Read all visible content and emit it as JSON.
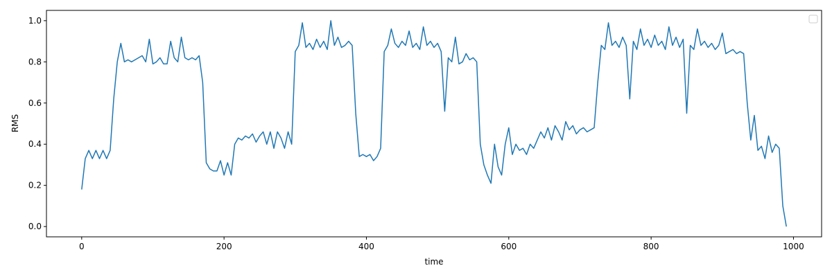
{
  "chart_data": {
    "type": "line",
    "xlabel": "time",
    "ylabel": "RMS",
    "x": [
      0,
      5,
      10,
      15,
      20,
      25,
      30,
      35,
      40,
      45,
      50,
      55,
      60,
      65,
      70,
      75,
      80,
      85,
      90,
      95,
      100,
      105,
      110,
      115,
      120,
      125,
      130,
      135,
      140,
      145,
      150,
      155,
      160,
      165,
      170,
      175,
      180,
      185,
      190,
      195,
      200,
      205,
      210,
      215,
      220,
      225,
      230,
      235,
      240,
      245,
      250,
      255,
      260,
      265,
      270,
      275,
      280,
      285,
      290,
      295,
      300,
      305,
      310,
      315,
      320,
      325,
      330,
      335,
      340,
      345,
      350,
      355,
      360,
      365,
      370,
      375,
      380,
      385,
      390,
      395,
      400,
      405,
      410,
      415,
      420,
      425,
      430,
      435,
      440,
      445,
      450,
      455,
      460,
      465,
      470,
      475,
      480,
      485,
      490,
      495,
      500,
      505,
      510,
      515,
      520,
      525,
      530,
      535,
      540,
      545,
      550,
      555,
      560,
      565,
      570,
      575,
      580,
      585,
      590,
      595,
      600,
      605,
      610,
      615,
      620,
      625,
      630,
      635,
      640,
      645,
      650,
      655,
      660,
      665,
      670,
      675,
      680,
      685,
      690,
      695,
      700,
      705,
      710,
      715,
      720,
      725,
      730,
      735,
      740,
      745,
      750,
      755,
      760,
      765,
      770,
      775,
      780,
      785,
      790,
      795,
      800,
      805,
      810,
      815,
      820,
      825,
      830,
      835,
      840,
      845,
      850,
      855,
      860,
      865,
      870,
      875,
      880,
      885,
      890,
      895,
      900,
      905,
      910,
      915,
      920,
      925,
      930,
      935,
      940,
      945,
      950,
      955,
      960,
      965,
      970,
      975,
      980,
      985,
      990
    ],
    "series": [
      {
        "color": "#1f77b4",
        "values": [
          0.18,
          0.33,
          0.37,
          0.33,
          0.37,
          0.33,
          0.37,
          0.33,
          0.37,
          0.62,
          0.8,
          0.89,
          0.8,
          0.81,
          0.8,
          0.81,
          0.82,
          0.83,
          0.8,
          0.91,
          0.79,
          0.8,
          0.82,
          0.79,
          0.79,
          0.9,
          0.82,
          0.8,
          0.92,
          0.82,
          0.81,
          0.82,
          0.81,
          0.83,
          0.7,
          0.31,
          0.28,
          0.27,
          0.27,
          0.32,
          0.25,
          0.31,
          0.25,
          0.4,
          0.43,
          0.42,
          0.44,
          0.43,
          0.45,
          0.41,
          0.44,
          0.46,
          0.4,
          0.46,
          0.38,
          0.46,
          0.43,
          0.38,
          0.46,
          0.4,
          0.85,
          0.88,
          0.99,
          0.87,
          0.89,
          0.86,
          0.91,
          0.87,
          0.9,
          0.86,
          1.0,
          0.88,
          0.92,
          0.87,
          0.88,
          0.9,
          0.88,
          0.55,
          0.34,
          0.35,
          0.34,
          0.35,
          0.32,
          0.34,
          0.38,
          0.85,
          0.88,
          0.96,
          0.89,
          0.87,
          0.9,
          0.88,
          0.95,
          0.87,
          0.89,
          0.86,
          0.97,
          0.88,
          0.9,
          0.87,
          0.89,
          0.85,
          0.56,
          0.82,
          0.8,
          0.92,
          0.79,
          0.8,
          0.84,
          0.81,
          0.82,
          0.8,
          0.4,
          0.3,
          0.25,
          0.21,
          0.4,
          0.29,
          0.25,
          0.4,
          0.48,
          0.35,
          0.4,
          0.37,
          0.38,
          0.35,
          0.4,
          0.38,
          0.42,
          0.46,
          0.43,
          0.48,
          0.42,
          0.49,
          0.46,
          0.42,
          0.51,
          0.47,
          0.49,
          0.45,
          0.47,
          0.48,
          0.46,
          0.47,
          0.48,
          0.7,
          0.88,
          0.86,
          0.99,
          0.88,
          0.9,
          0.87,
          0.92,
          0.88,
          0.62,
          0.9,
          0.86,
          0.96,
          0.88,
          0.91,
          0.87,
          0.93,
          0.88,
          0.9,
          0.86,
          0.97,
          0.88,
          0.92,
          0.87,
          0.91,
          0.55,
          0.88,
          0.86,
          0.96,
          0.88,
          0.9,
          0.87,
          0.89,
          0.86,
          0.88,
          0.94,
          0.84,
          0.85,
          0.86,
          0.84,
          0.85,
          0.84,
          0.6,
          0.42,
          0.54,
          0.37,
          0.39,
          0.33,
          0.44,
          0.36,
          0.4,
          0.38,
          0.1,
          0.0
        ]
      }
    ],
    "xlim": [
      -49.5,
      1039.5
    ],
    "ylim": [
      -0.05,
      1.05
    ],
    "xticks": [
      0,
      200,
      400,
      600,
      800,
      1000
    ],
    "yticks": [
      {
        "value": 0,
        "label": "0.0"
      },
      {
        "value": 0.2,
        "label": "0.2"
      },
      {
        "value": 0.4,
        "label": "0.4"
      },
      {
        "value": 0.6,
        "label": "0.6"
      },
      {
        "value": 0.8,
        "label": "0.8"
      },
      {
        "value": 1,
        "label": "1.0"
      }
    ],
    "grid": false
  }
}
